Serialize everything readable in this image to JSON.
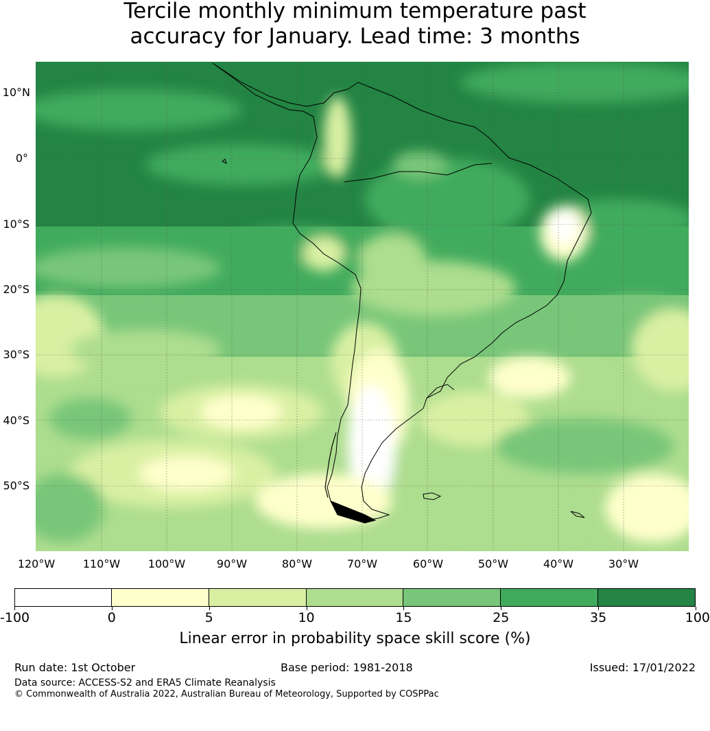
{
  "title_line1": "Tercile monthly minimum temperature past",
  "title_line2": "accuracy for January. Lead time: 3 months",
  "map": {
    "lat_labels": [
      "10°N",
      "0°",
      "10°S",
      "20°S",
      "30°S",
      "40°S",
      "50°S"
    ],
    "lon_labels": [
      "120°W",
      "110°W",
      "100°W",
      "90°W",
      "80°W",
      "70°W",
      "60°W",
      "50°W",
      "40°W",
      "30°W"
    ]
  },
  "colorbar": {
    "colors": [
      "#ffffff",
      "#ffffcc",
      "#d9f0a3",
      "#addd8e",
      "#78c679",
      "#41ab5d",
      "#238443"
    ],
    "ticks": [
      "-100",
      "0",
      "5",
      "10",
      "15",
      "25",
      "35",
      "100"
    ],
    "label": "Linear error in probability space skill score (%)"
  },
  "footer": {
    "run_date": "Run date: 1st October",
    "base_period": "Base period: 1981-2018",
    "issued": "Issued: 17/01/2022",
    "data_source": "Data source: ACCESS-S2 and ERA5 Climate Reanalysis",
    "copyright": "© Commonwealth of Australia 2022, Australian Bureau of Meteorology, Supported by COSPPac"
  }
}
